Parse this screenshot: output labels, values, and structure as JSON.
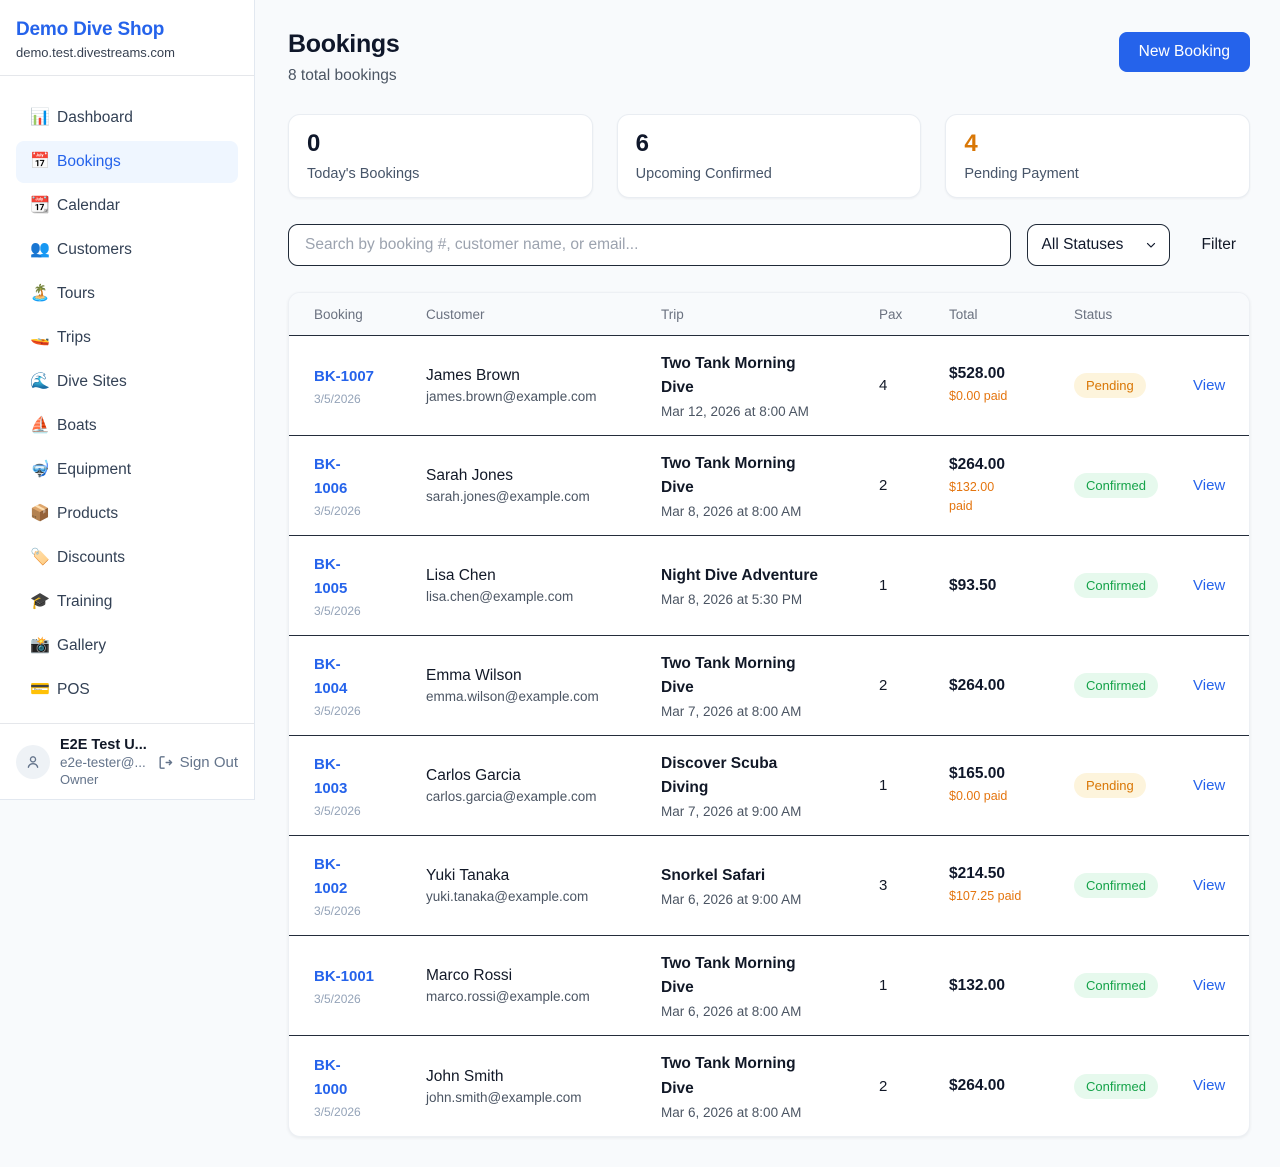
{
  "sidebar": {
    "brand": "Demo Dive Shop",
    "domain": "demo.test.divestreams.com",
    "items": [
      {
        "slug": "dashboard",
        "label": "Dashboard",
        "icon": "📊",
        "icon_name": "bar-chart-icon",
        "active": false
      },
      {
        "slug": "bookings",
        "label": "Bookings",
        "icon": "📅",
        "icon_name": "calendar-icon",
        "active": true
      },
      {
        "slug": "calendar",
        "label": "Calendar",
        "icon": "📆",
        "icon_name": "tear-off-calendar-icon",
        "active": false
      },
      {
        "slug": "customers",
        "label": "Customers",
        "icon": "👥",
        "icon_name": "people-icon",
        "active": false
      },
      {
        "slug": "tours",
        "label": "Tours",
        "icon": "🏝️",
        "icon_name": "island-icon",
        "active": false
      },
      {
        "slug": "trips",
        "label": "Trips",
        "icon": "🚤",
        "icon_name": "speedboat-icon",
        "active": false
      },
      {
        "slug": "dive-sites",
        "label": "Dive Sites",
        "icon": "🌊",
        "icon_name": "wave-icon",
        "active": false
      },
      {
        "slug": "boats",
        "label": "Boats",
        "icon": "⛵",
        "icon_name": "sailboat-icon",
        "active": false
      },
      {
        "slug": "equipment",
        "label": "Equipment",
        "icon": "🤿",
        "icon_name": "diving-mask-icon",
        "active": false
      },
      {
        "slug": "products",
        "label": "Products",
        "icon": "📦",
        "icon_name": "package-icon",
        "active": false
      },
      {
        "slug": "discounts",
        "label": "Discounts",
        "icon": "🏷️",
        "icon_name": "tag-icon",
        "active": false
      },
      {
        "slug": "training",
        "label": "Training",
        "icon": "🎓",
        "icon_name": "graduation-cap-icon",
        "active": false
      },
      {
        "slug": "gallery",
        "label": "Gallery",
        "icon": "📸",
        "icon_name": "camera-icon",
        "active": false
      },
      {
        "slug": "pos",
        "label": "POS",
        "icon": "💳",
        "icon_name": "credit-card-icon",
        "active": false
      }
    ],
    "user": {
      "name": "E2E Test U...",
      "email": "e2e-tester@...",
      "role": "Owner",
      "sign_out_label": "Sign Out"
    }
  },
  "header": {
    "title": "Bookings",
    "subtitle": "8 total bookings",
    "new_booking_label": "New Booking"
  },
  "stats": [
    {
      "value": "0",
      "label": "Today's Bookings",
      "value_color": "#0f172a"
    },
    {
      "value": "6",
      "label": "Upcoming Confirmed",
      "value_color": "#0f172a"
    },
    {
      "value": "4",
      "label": "Pending Payment",
      "value_color": "#d97706"
    }
  ],
  "filters": {
    "search_placeholder": "Search by booking #, customer name, or email...",
    "status_selected": "All Statuses",
    "filter_label": "Filter"
  },
  "table": {
    "columns": [
      "Booking",
      "Customer",
      "Trip",
      "Pax",
      "Total",
      "Status"
    ],
    "view_label": "View",
    "rows": [
      {
        "id_lines": [
          "BK-1007"
        ],
        "date": "3/5/2026",
        "customer": "James Brown",
        "email": "james.brown@example.com",
        "trip_lines": [
          "Two Tank Morning",
          "Dive"
        ],
        "datetime": "Mar 12, 2026 at 8:00 AM",
        "pax": "4",
        "total": "$528.00",
        "paid_lines": [
          "$0.00 paid"
        ],
        "status": "Pending"
      },
      {
        "id_lines": [
          "BK-",
          "1006"
        ],
        "date": "3/5/2026",
        "customer": "Sarah Jones",
        "email": "sarah.jones@example.com",
        "trip_lines": [
          "Two Tank Morning",
          "Dive"
        ],
        "datetime": "Mar 8, 2026 at 8:00 AM",
        "pax": "2",
        "total": "$264.00",
        "paid_lines": [
          "$132.00",
          "paid"
        ],
        "status": "Confirmed"
      },
      {
        "id_lines": [
          "BK-",
          "1005"
        ],
        "date": "3/5/2026",
        "customer": "Lisa Chen",
        "email": "lisa.chen@example.com",
        "trip_lines": [
          "Night Dive Adventure"
        ],
        "datetime": "Mar 8, 2026 at 5:30 PM",
        "pax": "1",
        "total": "$93.50",
        "paid_lines": null,
        "status": "Confirmed"
      },
      {
        "id_lines": [
          "BK-",
          "1004"
        ],
        "date": "3/5/2026",
        "customer": "Emma Wilson",
        "email": "emma.wilson@example.com",
        "trip_lines": [
          "Two Tank Morning",
          "Dive"
        ],
        "datetime": "Mar 7, 2026 at 8:00 AM",
        "pax": "2",
        "total": "$264.00",
        "paid_lines": null,
        "status": "Confirmed"
      },
      {
        "id_lines": [
          "BK-",
          "1003"
        ],
        "date": "3/5/2026",
        "customer": "Carlos Garcia",
        "email": "carlos.garcia@example.com",
        "trip_lines": [
          "Discover Scuba",
          "Diving"
        ],
        "datetime": "Mar 7, 2026 at 9:00 AM",
        "pax": "1",
        "total": "$165.00",
        "paid_lines": [
          "$0.00 paid"
        ],
        "status": "Pending"
      },
      {
        "id_lines": [
          "BK-",
          "1002"
        ],
        "date": "3/5/2026",
        "customer": "Yuki Tanaka",
        "email": "yuki.tanaka@example.com",
        "trip_lines": [
          "Snorkel Safari"
        ],
        "datetime": "Mar 6, 2026 at 9:00 AM",
        "pax": "3",
        "total": "$214.50",
        "paid_lines": [
          "$107.25 paid"
        ],
        "status": "Confirmed"
      },
      {
        "id_lines": [
          "BK-1001"
        ],
        "date": "3/5/2026",
        "customer": "Marco Rossi",
        "email": "marco.rossi@example.com",
        "trip_lines": [
          "Two Tank Morning",
          "Dive"
        ],
        "datetime": "Mar 6, 2026 at 8:00 AM",
        "pax": "1",
        "total": "$132.00",
        "paid_lines": null,
        "status": "Confirmed"
      },
      {
        "id_lines": [
          "BK-",
          "1000"
        ],
        "date": "3/5/2026",
        "customer": "John Smith",
        "email": "john.smith@example.com",
        "trip_lines": [
          "Two Tank Morning",
          "Dive"
        ],
        "datetime": "Mar 6, 2026 at 8:00 AM",
        "pax": "2",
        "total": "$264.00",
        "paid_lines": null,
        "status": "Confirmed"
      }
    ]
  },
  "colors": {
    "accent_blue": "#2563eb",
    "page_background": "#f8fafc",
    "pending_badge_bg": "#fdf4dc",
    "pending_badge_text": "#d97706",
    "confirmed_badge_bg": "#e6f9ed",
    "confirmed_badge_text": "#16a34a",
    "paid_text": "#e4750f",
    "row_divider": "#242d3b"
  }
}
